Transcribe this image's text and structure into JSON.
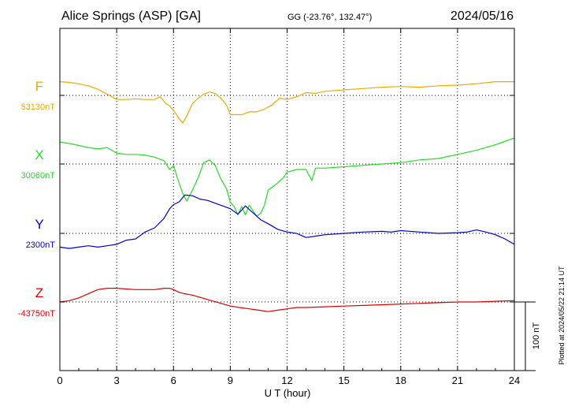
{
  "header": {
    "station": "Alice Springs (ASP)  [GA]",
    "coords": "GG (-23.76°, 132.47°)",
    "date": "2024/05/16"
  },
  "footer": {
    "plotted": "Plotted at 2024/05/22 21:14 UT",
    "scale_label": "100 nT"
  },
  "chart_data": {
    "type": "line",
    "title": "Alice Springs (ASP)  [GA]",
    "xlabel": "U T (hour)",
    "ylabel": "",
    "xlim": [
      0,
      24
    ],
    "xticks": [
      0,
      3,
      6,
      9,
      12,
      15,
      18,
      21,
      24
    ],
    "grid": true,
    "scale_bar_nT": 100,
    "series": [
      {
        "name": "F",
        "baseline_label": "53130nT",
        "color": "#f0a800",
        "x": [
          0,
          0.5,
          1,
          1.5,
          2,
          2.5,
          3,
          3.5,
          4,
          4.5,
          5,
          5.3,
          5.6,
          5.8,
          6,
          6.3,
          6.5,
          6.7,
          7,
          7.3,
          7.6,
          7.9,
          8.2,
          8.5,
          8.8,
          9,
          9.3,
          9.6,
          10,
          10.4,
          10.8,
          11.2,
          11.6,
          12,
          12.5,
          13,
          13.5,
          14,
          15,
          16,
          17,
          18,
          19,
          20,
          21,
          22,
          23,
          24
        ],
        "values": [
          20,
          19,
          17,
          14,
          9,
          2,
          -6,
          -6,
          -5,
          -6,
          -6,
          -2,
          -12,
          -15,
          -22,
          -34,
          -40,
          -30,
          -12,
          -4,
          2,
          5,
          3,
          -4,
          -14,
          -28,
          -28,
          -28,
          -24,
          -24,
          -20,
          -14,
          -4,
          -6,
          -2,
          4,
          3,
          6,
          8,
          10,
          12,
          13,
          12,
          14,
          15,
          17,
          20,
          20
        ]
      },
      {
        "name": "X",
        "baseline_label": "30060nT",
        "color": "#22dd22",
        "x": [
          0,
          0.5,
          1,
          1.5,
          2,
          2.5,
          3,
          3.5,
          4,
          4.5,
          5,
          5.5,
          5.8,
          6,
          6.2,
          6.5,
          6.7,
          7,
          7.3,
          7.6,
          7.9,
          8.2,
          8.5,
          8.8,
          9,
          9.2,
          9.4,
          9.6,
          9.8,
          10,
          10.2,
          10.4,
          10.6,
          10.8,
          11,
          11.4,
          11.8,
          12,
          12.5,
          13,
          13.3,
          13.5,
          14,
          15,
          16,
          17,
          18,
          19,
          20,
          21,
          22,
          23,
          24
        ],
        "values": [
          32,
          30,
          27,
          24,
          22,
          24,
          16,
          14,
          14,
          13,
          10,
          5,
          -8,
          -2,
          -20,
          -44,
          -54,
          -38,
          -20,
          2,
          6,
          -2,
          -22,
          -36,
          -56,
          -62,
          -74,
          -62,
          -74,
          -60,
          -68,
          -76,
          -72,
          -60,
          -38,
          -30,
          -20,
          -12,
          -8,
          -8,
          -24,
          -6,
          -6,
          -4,
          -2,
          0,
          2,
          6,
          8,
          14,
          20,
          28,
          38
        ]
      },
      {
        "name": "Y",
        "baseline_label": "2300nT",
        "color": "#0000cc",
        "x": [
          0,
          0.5,
          1,
          1.5,
          2,
          2.5,
          3,
          3.5,
          4,
          4.5,
          5,
          5.5,
          5.8,
          6,
          6.3,
          6.6,
          7,
          7.4,
          7.8,
          8.2,
          8.6,
          9,
          9.4,
          9.8,
          10.2,
          10.6,
          11,
          11.5,
          12,
          12.5,
          13,
          13.5,
          14,
          15,
          16,
          17,
          17.5,
          18,
          19,
          20,
          21,
          21.5,
          22,
          22.5,
          23,
          23.5,
          24
        ],
        "values": [
          -20,
          -22,
          -20,
          -18,
          -20,
          -18,
          -16,
          -10,
          -8,
          2,
          8,
          22,
          36,
          42,
          46,
          56,
          55,
          50,
          48,
          44,
          40,
          36,
          28,
          40,
          30,
          20,
          14,
          6,
          2,
          0,
          -6,
          -4,
          -2,
          0,
          2,
          3,
          2,
          4,
          2,
          0,
          1,
          2,
          5,
          2,
          -2,
          -8,
          -16
        ]
      },
      {
        "name": "Z",
        "baseline_label": "-43750nT",
        "color": "#dd0000",
        "x": [
          0,
          0.5,
          1,
          1.5,
          2,
          2.5,
          3,
          3.5,
          4,
          4.5,
          5,
          5.5,
          5.8,
          6,
          6.3,
          6.6,
          7,
          7.5,
          8,
          8.5,
          9,
          9.5,
          10,
          10.5,
          11,
          11.5,
          12,
          12.5,
          13,
          14,
          15,
          16,
          17,
          18,
          19,
          20,
          21,
          22,
          23,
          24
        ],
        "values": [
          0,
          2,
          6,
          12,
          18,
          20,
          20,
          19,
          18,
          18,
          18,
          20,
          20,
          18,
          14,
          12,
          10,
          6,
          2,
          -2,
          -6,
          -8,
          -10,
          -12,
          -14,
          -12,
          -10,
          -8,
          -8,
          -7,
          -6,
          -5,
          -4,
          -3,
          -2,
          -1,
          0,
          0,
          1,
          2
        ]
      }
    ]
  }
}
